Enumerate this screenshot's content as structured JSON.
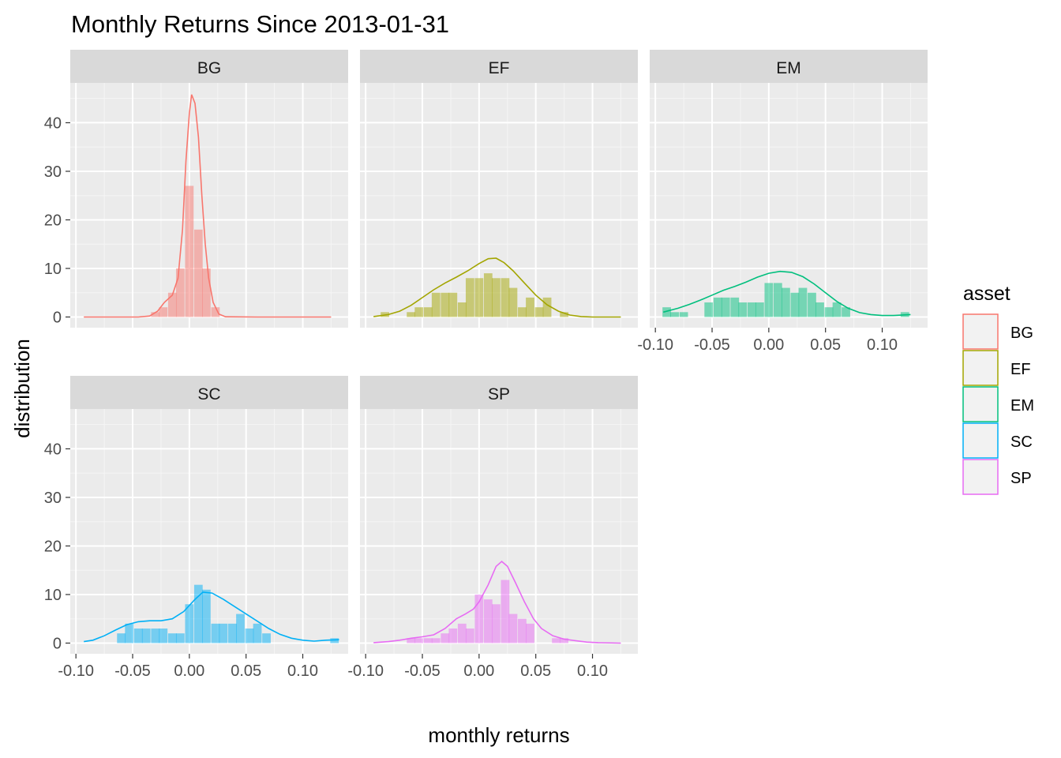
{
  "chart_data": {
    "type": "histogram-density-facets",
    "title": "Monthly Returns Since 2013-01-31",
    "xlabel": "monthly returns",
    "ylabel": "distribution",
    "xlim": [
      -0.105,
      0.14
    ],
    "ylim": [
      -2.2,
      48.2
    ],
    "x_ticks": [
      -0.1,
      -0.05,
      0.0,
      0.05,
      0.1
    ],
    "x_tick_labels": [
      "-0.10",
      "-0.05",
      "0.00",
      "0.05",
      "0.10"
    ],
    "y_ticks": [
      0,
      10,
      20,
      30,
      40
    ],
    "y_tick_labels": [
      "0",
      "10",
      "20",
      "30",
      "40"
    ],
    "bin_width": 0.0075,
    "legend": {
      "title": "asset",
      "position": "right",
      "entries": [
        "BG",
        "EF",
        "EM",
        "SC",
        "SP"
      ]
    },
    "facets": [
      {
        "name": "BG",
        "color": "#F8766D",
        "bins": [
          [
            -0.03,
            1
          ],
          [
            -0.023,
            2
          ],
          [
            -0.015,
            5
          ],
          [
            -0.008,
            10
          ],
          [
            0.0,
            27
          ],
          [
            0.008,
            18
          ],
          [
            0.015,
            10
          ],
          [
            0.023,
            2
          ]
        ],
        "density": [
          [
            -0.093,
            0
          ],
          [
            -0.045,
            0
          ],
          [
            -0.035,
            0.2
          ],
          [
            -0.028,
            1.2
          ],
          [
            -0.022,
            3
          ],
          [
            -0.015,
            4.5
          ],
          [
            -0.01,
            8
          ],
          [
            -0.006,
            18
          ],
          [
            -0.003,
            32
          ],
          [
            0.0,
            42
          ],
          [
            0.002,
            45.8
          ],
          [
            0.005,
            44
          ],
          [
            0.008,
            37
          ],
          [
            0.011,
            25
          ],
          [
            0.014,
            15
          ],
          [
            0.017,
            8
          ],
          [
            0.021,
            3
          ],
          [
            0.026,
            0.6
          ],
          [
            0.032,
            0.05
          ],
          [
            0.06,
            0
          ],
          [
            0.125,
            0
          ]
        ]
      },
      {
        "name": "EF",
        "color": "#A3A500",
        "bins": [
          [
            -0.083,
            1
          ],
          [
            -0.06,
            1
          ],
          [
            -0.053,
            2
          ],
          [
            -0.045,
            2
          ],
          [
            -0.038,
            5
          ],
          [
            -0.03,
            5
          ],
          [
            -0.023,
            5
          ],
          [
            -0.015,
            3
          ],
          [
            -0.008,
            8
          ],
          [
            0.0,
            8
          ],
          [
            0.008,
            9
          ],
          [
            0.015,
            8
          ],
          [
            0.023,
            8
          ],
          [
            0.03,
            6
          ],
          [
            0.038,
            2
          ],
          [
            0.045,
            4
          ],
          [
            0.053,
            2
          ],
          [
            0.06,
            4
          ],
          [
            0.075,
            1
          ]
        ],
        "density": [
          [
            -0.093,
            0.1
          ],
          [
            -0.08,
            0.5
          ],
          [
            -0.07,
            1.2
          ],
          [
            -0.06,
            2.4
          ],
          [
            -0.05,
            4
          ],
          [
            -0.04,
            5.6
          ],
          [
            -0.03,
            7
          ],
          [
            -0.02,
            8.2
          ],
          [
            -0.01,
            9.5
          ],
          [
            0.0,
            11
          ],
          [
            0.008,
            12
          ],
          [
            0.015,
            12.1
          ],
          [
            0.022,
            11.2
          ],
          [
            0.03,
            9.5
          ],
          [
            0.04,
            7
          ],
          [
            0.05,
            4.5
          ],
          [
            0.06,
            2.5
          ],
          [
            0.07,
            1.2
          ],
          [
            0.08,
            0.4
          ],
          [
            0.09,
            0.1
          ],
          [
            0.1,
            0
          ],
          [
            0.125,
            0
          ]
        ]
      },
      {
        "name": "EM",
        "color": "#00BF7D",
        "bins": [
          [
            -0.09,
            2
          ],
          [
            -0.083,
            1
          ],
          [
            -0.075,
            1
          ],
          [
            -0.053,
            3
          ],
          [
            -0.045,
            4
          ],
          [
            -0.038,
            4
          ],
          [
            -0.03,
            4
          ],
          [
            -0.023,
            3
          ],
          [
            -0.015,
            3
          ],
          [
            -0.008,
            3
          ],
          [
            0.0,
            7
          ],
          [
            0.008,
            7
          ],
          [
            0.015,
            6
          ],
          [
            0.023,
            5
          ],
          [
            0.03,
            6
          ],
          [
            0.038,
            5
          ],
          [
            0.045,
            3
          ],
          [
            0.053,
            2
          ],
          [
            0.06,
            3
          ],
          [
            0.068,
            2
          ],
          [
            0.12,
            1
          ]
        ],
        "density": [
          [
            -0.093,
            1
          ],
          [
            -0.08,
            1.8
          ],
          [
            -0.07,
            2.6
          ],
          [
            -0.06,
            3.5
          ],
          [
            -0.05,
            4.5
          ],
          [
            -0.04,
            5.5
          ],
          [
            -0.03,
            6.3
          ],
          [
            -0.02,
            7.2
          ],
          [
            -0.01,
            8.2
          ],
          [
            0.0,
            9
          ],
          [
            0.01,
            9.4
          ],
          [
            0.02,
            9.2
          ],
          [
            0.03,
            8.3
          ],
          [
            0.04,
            6.8
          ],
          [
            0.05,
            5
          ],
          [
            0.06,
            3.2
          ],
          [
            0.07,
            1.8
          ],
          [
            0.08,
            0.9
          ],
          [
            0.09,
            0.5
          ],
          [
            0.1,
            0.3
          ],
          [
            0.11,
            0.3
          ],
          [
            0.125,
            0.5
          ]
        ]
      },
      {
        "name": "SC",
        "color": "#00B0F6",
        "bins": [
          [
            -0.06,
            2
          ],
          [
            -0.053,
            4
          ],
          [
            -0.045,
            3
          ],
          [
            -0.038,
            3
          ],
          [
            -0.03,
            3
          ],
          [
            -0.023,
            3
          ],
          [
            -0.015,
            2
          ],
          [
            -0.008,
            2
          ],
          [
            0.0,
            8
          ],
          [
            0.008,
            12
          ],
          [
            0.015,
            11
          ],
          [
            0.023,
            4
          ],
          [
            0.03,
            4
          ],
          [
            0.038,
            4
          ],
          [
            0.045,
            6
          ],
          [
            0.053,
            3
          ],
          [
            0.06,
            4
          ],
          [
            0.068,
            2
          ],
          [
            0.128,
            1
          ]
        ],
        "density": [
          [
            -0.093,
            0.3
          ],
          [
            -0.085,
            0.6
          ],
          [
            -0.075,
            1.5
          ],
          [
            -0.065,
            2.7
          ],
          [
            -0.055,
            3.8
          ],
          [
            -0.045,
            4.4
          ],
          [
            -0.035,
            4.6
          ],
          [
            -0.025,
            4.6
          ],
          [
            -0.015,
            5
          ],
          [
            -0.005,
            6.5
          ],
          [
            0.005,
            9
          ],
          [
            0.012,
            10.5
          ],
          [
            0.02,
            10.3
          ],
          [
            0.03,
            9
          ],
          [
            0.04,
            7.5
          ],
          [
            0.05,
            6
          ],
          [
            0.06,
            4.5
          ],
          [
            0.07,
            3
          ],
          [
            0.08,
            1.8
          ],
          [
            0.09,
            1
          ],
          [
            0.1,
            0.6
          ],
          [
            0.11,
            0.4
          ],
          [
            0.12,
            0.6
          ],
          [
            0.132,
            0.7
          ]
        ]
      },
      {
        "name": "SP",
        "color": "#E76BF3",
        "bins": [
          [
            -0.06,
            1
          ],
          [
            -0.053,
            1
          ],
          [
            -0.045,
            1
          ],
          [
            -0.038,
            1
          ],
          [
            -0.03,
            2
          ],
          [
            -0.023,
            3
          ],
          [
            -0.015,
            4
          ],
          [
            -0.008,
            3
          ],
          [
            0.0,
            10
          ],
          [
            0.008,
            9
          ],
          [
            0.015,
            8
          ],
          [
            0.023,
            13
          ],
          [
            0.03,
            6
          ],
          [
            0.038,
            5
          ],
          [
            0.045,
            4
          ],
          [
            0.068,
            1
          ],
          [
            0.075,
            1
          ]
        ],
        "density": [
          [
            -0.093,
            0.1
          ],
          [
            -0.08,
            0.3
          ],
          [
            -0.07,
            0.6
          ],
          [
            -0.06,
            1
          ],
          [
            -0.05,
            1.3
          ],
          [
            -0.04,
            1.7
          ],
          [
            -0.03,
            3
          ],
          [
            -0.02,
            5
          ],
          [
            -0.012,
            6
          ],
          [
            -0.005,
            7
          ],
          [
            0.0,
            8.5
          ],
          [
            0.008,
            12
          ],
          [
            0.015,
            15.8
          ],
          [
            0.02,
            16.8
          ],
          [
            0.025,
            15.8
          ],
          [
            0.032,
            12.5
          ],
          [
            0.04,
            8.5
          ],
          [
            0.048,
            5
          ],
          [
            0.055,
            3
          ],
          [
            0.065,
            1.5
          ],
          [
            0.075,
            0.8
          ],
          [
            0.085,
            0.5
          ],
          [
            0.095,
            0.2
          ],
          [
            0.105,
            0.1
          ],
          [
            0.125,
            0
          ]
        ]
      }
    ]
  }
}
